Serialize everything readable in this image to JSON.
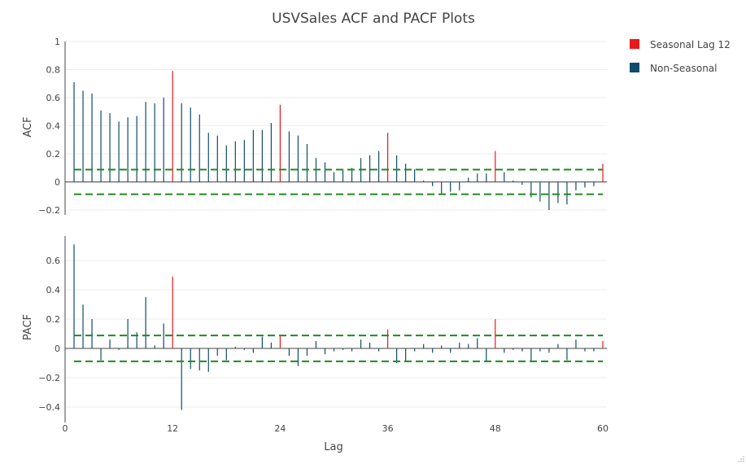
{
  "chart_data": {
    "type": "bar",
    "title": "USVSales ACF and PACF Plots",
    "xlabel": "Lag",
    "x_ticks": [
      0,
      12,
      24,
      36,
      48,
      60
    ],
    "xlim": [
      0,
      60
    ],
    "legend": {
      "placement": "top-right",
      "entries": [
        {
          "name": "Seasonal Lag 12",
          "color": "#e8191b"
        },
        {
          "name": "Non-Seasonal",
          "color": "#0f4c6b"
        }
      ]
    },
    "confidence_color": "#1f8a1f",
    "grid": true,
    "panels": [
      {
        "ylabel": "ACF",
        "ylim": [
          -0.25,
          1.0
        ],
        "y_ticks": [
          -0.2,
          0,
          0.2,
          0.4,
          0.6,
          0.8,
          1
        ],
        "y_tick_labels": [
          "−0.2",
          "0",
          "0.2",
          "0.4",
          "0.6",
          "0.8",
          "1"
        ],
        "confidence": 0.088,
        "lags": [
          1,
          2,
          3,
          4,
          5,
          6,
          7,
          8,
          9,
          10,
          11,
          12,
          13,
          14,
          15,
          16,
          17,
          18,
          19,
          20,
          21,
          22,
          23,
          24,
          25,
          26,
          27,
          28,
          29,
          30,
          31,
          32,
          33,
          34,
          35,
          36,
          37,
          38,
          39,
          40,
          41,
          42,
          43,
          44,
          45,
          46,
          47,
          48,
          49,
          50,
          51,
          52,
          53,
          54,
          55,
          56,
          57,
          58,
          59,
          60
        ],
        "values": [
          0.71,
          0.65,
          0.63,
          0.51,
          0.49,
          0.43,
          0.46,
          0.47,
          0.57,
          0.56,
          0.6,
          0.79,
          0.56,
          0.53,
          0.48,
          0.35,
          0.33,
          0.26,
          0.29,
          0.3,
          0.37,
          0.37,
          0.42,
          0.55,
          0.36,
          0.33,
          0.27,
          0.17,
          0.14,
          0.07,
          0.09,
          0.1,
          0.17,
          0.19,
          0.22,
          0.35,
          0.19,
          0.13,
          0.09,
          0.01,
          -0.03,
          -0.09,
          -0.07,
          -0.06,
          0.03,
          0.06,
          0.06,
          0.22,
          0.07,
          0.01,
          -0.02,
          -0.11,
          -0.14,
          -0.2,
          -0.15,
          -0.16,
          -0.06,
          -0.04,
          -0.03,
          0.13
        ]
      },
      {
        "ylabel": "PACF",
        "ylim": [
          -0.45,
          0.72
        ],
        "y_ticks": [
          -0.4,
          -0.2,
          0,
          0.2,
          0.4,
          0.6
        ],
        "y_tick_labels": [
          "−0.4",
          "−0.2",
          "0",
          "0.2",
          "0.4",
          "0.6"
        ],
        "confidence": 0.088,
        "lags": [
          1,
          2,
          3,
          4,
          5,
          6,
          7,
          8,
          9,
          10,
          11,
          12,
          13,
          14,
          15,
          16,
          17,
          18,
          19,
          20,
          21,
          22,
          23,
          24,
          25,
          26,
          27,
          28,
          29,
          30,
          31,
          32,
          33,
          34,
          35,
          36,
          37,
          38,
          39,
          40,
          41,
          42,
          43,
          44,
          45,
          46,
          47,
          48,
          49,
          50,
          51,
          52,
          53,
          54,
          55,
          56,
          57,
          58,
          59,
          60
        ],
        "values": [
          0.71,
          0.3,
          0.2,
          -0.08,
          0.06,
          -0.01,
          0.2,
          0.11,
          0.35,
          0.02,
          0.17,
          0.49,
          -0.42,
          -0.14,
          -0.15,
          -0.16,
          -0.05,
          -0.08,
          0.01,
          -0.01,
          -0.03,
          0.08,
          0.04,
          0.09,
          -0.05,
          -0.12,
          -0.05,
          0.05,
          -0.04,
          -0.02,
          -0.01,
          -0.02,
          0.06,
          0.04,
          -0.02,
          0.13,
          -0.1,
          -0.09,
          -0.02,
          0.03,
          -0.03,
          0.02,
          -0.03,
          0.04,
          0.03,
          0.07,
          -0.09,
          0.2,
          -0.03,
          -0.01,
          -0.02,
          -0.09,
          -0.02,
          -0.03,
          0.03,
          -0.08,
          0.06,
          -0.02,
          -0.02,
          0.05
        ]
      }
    ]
  }
}
